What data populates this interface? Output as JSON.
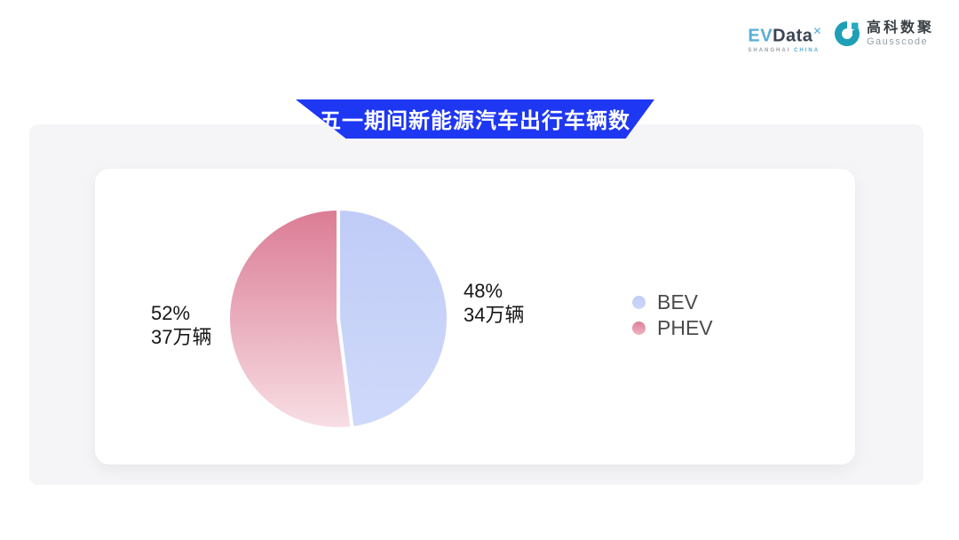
{
  "header": {
    "evdata": {
      "ev": "EV",
      "data": "Data",
      "x": "✕",
      "sub_left": "SHANGHAI",
      "sub_right": "CHINA"
    },
    "gausscode": {
      "cn": "高科数聚",
      "en": "Gausscode",
      "icon_color": "#1f9fb5"
    }
  },
  "banner": {
    "title": "五一期间新能源汽车出行车辆数",
    "color": "#1e37f3"
  },
  "chart_data": {
    "type": "pie",
    "title": "五一期间新能源汽车出行车辆数",
    "unit": "万辆",
    "start_angle_deg_from_top": 0,
    "direction": "clockwise",
    "legend_position": "right",
    "series": [
      {
        "name": "BEV",
        "percent": 48,
        "percent_label": "48%",
        "value": 34,
        "value_label": "34万辆",
        "color_top": "#c0ccf7",
        "color_bottom": "#cfd9fa"
      },
      {
        "name": "PHEV",
        "percent": 52,
        "percent_label": "52%",
        "value": 37,
        "value_label": "37万辆",
        "color_top": "#db7b94",
        "color_bottom": "#f8dfe5"
      }
    ]
  }
}
